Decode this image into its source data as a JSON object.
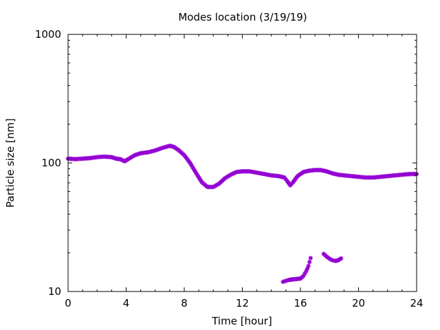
{
  "chart_data": {
    "type": "scatter",
    "title": "Modes location (3/19/19)",
    "xlabel": "Time [hour]",
    "ylabel": "Particle size [nm]",
    "xlim": [
      0,
      24
    ],
    "ylim": [
      10,
      1000
    ],
    "yscale": "log",
    "x_ticks": [
      0,
      4,
      8,
      12,
      16,
      20,
      24
    ],
    "y_ticks": [
      10,
      100,
      1000
    ],
    "grid": false,
    "legend": "none",
    "marker_color": "#9400D3",
    "marker": "star",
    "series": [
      {
        "points": [
          [
            0.0,
            108
          ],
          [
            0.5,
            107
          ],
          [
            1.0,
            108
          ],
          [
            1.5,
            109
          ],
          [
            2.0,
            111
          ],
          [
            2.5,
            112
          ],
          [
            3.0,
            111
          ],
          [
            3.3,
            108
          ],
          [
            3.6,
            107
          ],
          [
            3.9,
            103
          ],
          [
            4.2,
            108
          ],
          [
            4.6,
            115
          ],
          [
            5.0,
            119
          ],
          [
            5.5,
            121
          ],
          [
            6.0,
            125
          ],
          [
            6.5,
            131
          ],
          [
            7.0,
            136
          ],
          [
            7.3,
            133
          ],
          [
            7.6,
            126
          ],
          [
            8.0,
            115
          ],
          [
            8.4,
            100
          ],
          [
            8.8,
            84
          ],
          [
            9.2,
            71
          ],
          [
            9.6,
            65
          ],
          [
            10.0,
            65
          ],
          [
            10.4,
            69
          ],
          [
            10.8,
            76
          ],
          [
            11.2,
            81
          ],
          [
            11.6,
            85
          ],
          [
            12.0,
            86
          ],
          [
            12.5,
            86
          ],
          [
            13.0,
            84
          ],
          [
            13.5,
            82
          ],
          [
            14.0,
            80
          ],
          [
            14.5,
            79
          ],
          [
            14.9,
            77
          ],
          [
            15.1,
            72
          ],
          [
            15.3,
            67
          ],
          [
            15.5,
            71
          ],
          [
            15.8,
            79
          ],
          [
            16.2,
            85
          ],
          [
            16.6,
            87
          ],
          [
            17.0,
            88
          ],
          [
            17.4,
            88
          ],
          [
            17.8,
            86
          ],
          [
            18.2,
            83
          ],
          [
            18.6,
            81
          ],
          [
            19.0,
            80
          ],
          [
            19.5,
            79
          ],
          [
            20.0,
            78
          ],
          [
            20.5,
            77
          ],
          [
            21.0,
            77
          ],
          [
            21.5,
            78
          ],
          [
            22.0,
            79
          ],
          [
            22.5,
            80
          ],
          [
            23.0,
            81
          ],
          [
            23.5,
            82
          ],
          [
            24.0,
            82
          ]
        ]
      },
      {
        "points": [
          [
            14.8,
            11.9
          ],
          [
            15.0,
            12.1
          ],
          [
            15.2,
            12.3
          ],
          [
            15.4,
            12.4
          ],
          [
            15.7,
            12.5
          ],
          [
            16.0,
            12.6
          ],
          [
            16.2,
            13.2
          ],
          [
            16.4,
            14.4
          ],
          [
            16.55,
            15.8
          ],
          [
            16.7,
            18.2
          ]
        ]
      },
      {
        "points": [
          [
            17.6,
            19.6
          ],
          [
            17.8,
            18.7
          ],
          [
            18.0,
            18.0
          ],
          [
            18.2,
            17.5
          ],
          [
            18.4,
            17.3
          ],
          [
            18.6,
            17.5
          ],
          [
            18.8,
            18.1
          ]
        ]
      }
    ]
  }
}
